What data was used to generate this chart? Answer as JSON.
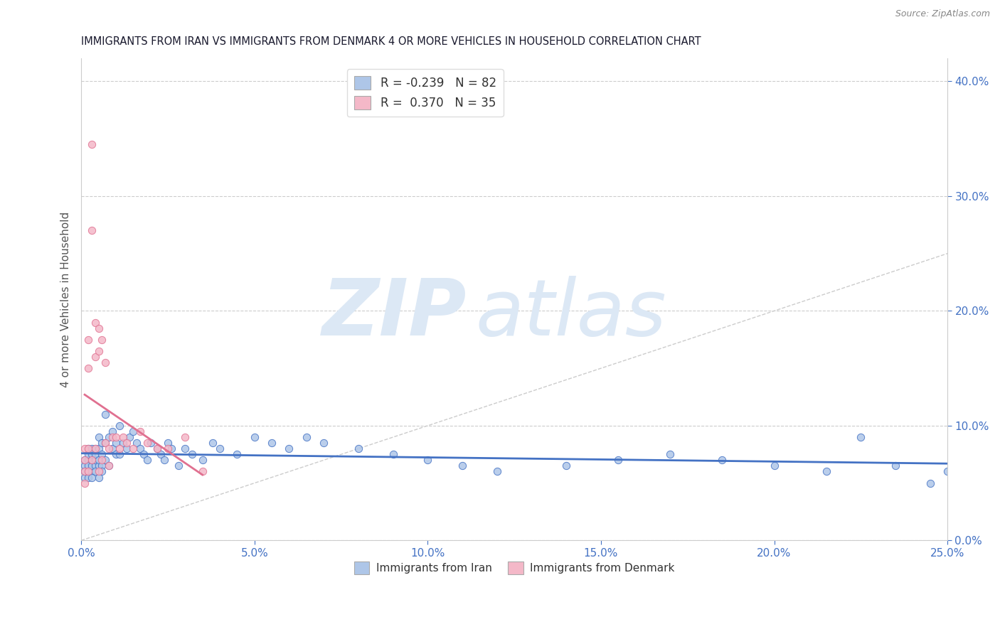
{
  "title": "IMMIGRANTS FROM IRAN VS IMMIGRANTS FROM DENMARK 4 OR MORE VEHICLES IN HOUSEHOLD CORRELATION CHART",
  "source": "Source: ZipAtlas.com",
  "ylabel_left": "4 or more Vehicles in Household",
  "xlim": [
    0.0,
    0.25
  ],
  "ylim": [
    0.0,
    0.42
  ],
  "xticks": [
    0.0,
    0.05,
    0.1,
    0.15,
    0.2,
    0.25
  ],
  "xtick_labels": [
    "0.0%",
    "5.0%",
    "10.0%",
    "15.0%",
    "20.0%",
    "25.0%"
  ],
  "yticks_right": [
    0.0,
    0.1,
    0.2,
    0.3,
    0.4
  ],
  "ytick_labels_right": [
    "0.0%",
    "10.0%",
    "20.0%",
    "30.0%",
    "40.0%"
  ],
  "legend1_label": "R = -0.239   N = 82",
  "legend2_label": "R =  0.370   N = 35",
  "legend_xlabel": "Immigrants from Iran",
  "legend_xlabel2": "Immigrants from Denmark",
  "iran_color": "#aec6e8",
  "denmark_color": "#f4b8c8",
  "iran_line_color": "#4472c4",
  "denmark_line_color": "#e07090",
  "background_color": "#ffffff",
  "grid_color": "#cccccc",
  "title_color": "#1a1a2e",
  "axis_color": "#4472c4",
  "watermark_zip": "ZIP",
  "watermark_atlas": "atlas",
  "watermark_color": "#dce8f5",
  "iran_x": [
    0.001,
    0.001,
    0.001,
    0.001,
    0.002,
    0.002,
    0.002,
    0.002,
    0.002,
    0.002,
    0.003,
    0.003,
    0.003,
    0.003,
    0.003,
    0.003,
    0.004,
    0.004,
    0.004,
    0.004,
    0.004,
    0.005,
    0.005,
    0.005,
    0.005,
    0.005,
    0.006,
    0.006,
    0.006,
    0.006,
    0.007,
    0.007,
    0.007,
    0.008,
    0.008,
    0.009,
    0.009,
    0.01,
    0.01,
    0.011,
    0.011,
    0.012,
    0.013,
    0.014,
    0.015,
    0.016,
    0.017,
    0.018,
    0.019,
    0.02,
    0.022,
    0.023,
    0.024,
    0.025,
    0.026,
    0.028,
    0.03,
    0.032,
    0.035,
    0.038,
    0.04,
    0.045,
    0.05,
    0.055,
    0.06,
    0.065,
    0.07,
    0.08,
    0.09,
    0.1,
    0.11,
    0.12,
    0.14,
    0.155,
    0.17,
    0.185,
    0.2,
    0.215,
    0.225,
    0.235,
    0.245,
    0.25
  ],
  "iran_y": [
    0.055,
    0.065,
    0.07,
    0.06,
    0.06,
    0.07,
    0.065,
    0.055,
    0.075,
    0.08,
    0.06,
    0.065,
    0.07,
    0.075,
    0.055,
    0.08,
    0.065,
    0.07,
    0.075,
    0.06,
    0.08,
    0.055,
    0.065,
    0.07,
    0.08,
    0.09,
    0.065,
    0.075,
    0.085,
    0.06,
    0.07,
    0.085,
    0.11,
    0.09,
    0.065,
    0.08,
    0.095,
    0.085,
    0.075,
    0.1,
    0.075,
    0.085,
    0.08,
    0.09,
    0.095,
    0.085,
    0.08,
    0.075,
    0.07,
    0.085,
    0.08,
    0.075,
    0.07,
    0.085,
    0.08,
    0.065,
    0.08,
    0.075,
    0.07,
    0.085,
    0.08,
    0.075,
    0.09,
    0.085,
    0.08,
    0.09,
    0.085,
    0.08,
    0.075,
    0.07,
    0.065,
    0.06,
    0.065,
    0.07,
    0.075,
    0.07,
    0.065,
    0.06,
    0.09,
    0.065,
    0.05,
    0.06
  ],
  "denmark_x": [
    0.001,
    0.001,
    0.001,
    0.001,
    0.002,
    0.002,
    0.002,
    0.002,
    0.003,
    0.003,
    0.003,
    0.004,
    0.004,
    0.004,
    0.005,
    0.005,
    0.005,
    0.006,
    0.006,
    0.007,
    0.007,
    0.008,
    0.008,
    0.009,
    0.01,
    0.011,
    0.012,
    0.013,
    0.015,
    0.017,
    0.019,
    0.022,
    0.025,
    0.03,
    0.035
  ],
  "denmark_y": [
    0.06,
    0.07,
    0.08,
    0.05,
    0.15,
    0.175,
    0.06,
    0.08,
    0.345,
    0.27,
    0.07,
    0.19,
    0.16,
    0.08,
    0.185,
    0.165,
    0.06,
    0.175,
    0.07,
    0.155,
    0.085,
    0.08,
    0.065,
    0.09,
    0.09,
    0.08,
    0.09,
    0.085,
    0.08,
    0.095,
    0.085,
    0.08,
    0.08,
    0.09,
    0.06
  ],
  "ref_line_x": [
    0.0,
    0.42
  ],
  "ref_line_y": [
    0.0,
    0.42
  ]
}
